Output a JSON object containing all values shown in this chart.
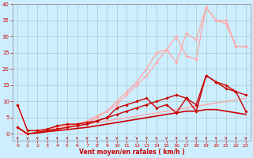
{
  "title": "",
  "xlabel": "Vent moyen/en rafales ( km/h )",
  "xlim": [
    -0.5,
    23.5
  ],
  "ylim": [
    -2,
    40
  ],
  "xticks": [
    0,
    1,
    2,
    3,
    4,
    5,
    6,
    7,
    8,
    9,
    10,
    11,
    12,
    13,
    14,
    15,
    16,
    17,
    18,
    19,
    20,
    21,
    22,
    23
  ],
  "yticks": [
    0,
    5,
    10,
    15,
    20,
    25,
    30,
    35,
    40
  ],
  "bg_color": "#cceeff",
  "grid_color": "#aacccc",
  "lines": [
    {
      "x": [
        0,
        1,
        2,
        3,
        4,
        5,
        6,
        7,
        8,
        9,
        10,
        11,
        12,
        13,
        14,
        15,
        16,
        17,
        18,
        19,
        20,
        21,
        22,
        23
      ],
      "y": [
        0,
        0,
        0.5,
        1,
        1.5,
        2,
        2.5,
        3,
        3.5,
        4,
        4.5,
        5,
        5.5,
        6,
        6.5,
        7,
        7.5,
        8,
        8.5,
        9,
        9.5,
        10,
        10.5,
        11
      ],
      "color": "#ffaaaa",
      "lw": 1.0,
      "marker": null,
      "zorder": 2
    },
    {
      "x": [
        0,
        1,
        2,
        3,
        4,
        5,
        6,
        7,
        8,
        9,
        10,
        11,
        12,
        13,
        14,
        15,
        16,
        17,
        18,
        19,
        20,
        21,
        22,
        23
      ],
      "y": [
        2,
        0,
        0.5,
        1,
        1.5,
        2,
        2.5,
        3.5,
        5,
        7,
        9,
        12,
        15,
        18,
        22,
        26,
        30,
        24,
        23,
        39,
        35,
        34,
        27,
        27
      ],
      "color": "#ffaaaa",
      "lw": 1.0,
      "marker": "D",
      "ms": 1.8,
      "zorder": 3
    },
    {
      "x": [
        0,
        1,
        2,
        3,
        4,
        5,
        6,
        7,
        8,
        9,
        10,
        11,
        12,
        13,
        14,
        15,
        16,
        17,
        18,
        19,
        20,
        21,
        22,
        23
      ],
      "y": [
        9,
        1,
        1,
        1.5,
        2,
        2.5,
        3,
        4,
        5.5,
        7,
        10,
        13,
        16,
        20,
        25,
        26,
        22,
        31,
        29,
        39,
        35,
        35,
        27,
        27
      ],
      "color": "#ffaaaa",
      "lw": 1.0,
      "marker": "D",
      "ms": 1.8,
      "zorder": 3
    },
    {
      "x": [
        0,
        1,
        2,
        3,
        4,
        5,
        6,
        7,
        8,
        9,
        10,
        11,
        12,
        13,
        14,
        15,
        16,
        17,
        18,
        19,
        20,
        21,
        22,
        23
      ],
      "y": [
        2,
        0,
        0.3,
        0.7,
        1,
        1.3,
        1.7,
        2,
        2.5,
        3,
        3.5,
        4,
        4.5,
        5,
        5.5,
        6,
        6.5,
        7,
        7,
        7.5,
        7.5,
        7,
        6.5,
        6
      ],
      "color": "#cc0000",
      "lw": 1.2,
      "marker": null,
      "zorder": 4
    },
    {
      "x": [
        0,
        1,
        2,
        3,
        4,
        5,
        6,
        7,
        8,
        9,
        10,
        11,
        12,
        13,
        14,
        15,
        16,
        17,
        18,
        19,
        20,
        21,
        22,
        23
      ],
      "y": [
        2,
        0,
        0.5,
        1,
        1.5,
        2,
        2.5,
        3,
        4,
        5,
        6,
        7,
        8,
        9,
        10,
        11,
        12,
        11,
        9,
        18,
        16,
        15,
        13,
        12
      ],
      "color": "#cc0000",
      "lw": 1.0,
      "marker": "D",
      "ms": 1.8,
      "zorder": 5
    },
    {
      "x": [
        0,
        1,
        2,
        3,
        4,
        5,
        6,
        7,
        8,
        9,
        10,
        11,
        12,
        13,
        14,
        15,
        16,
        17,
        18,
        19,
        20,
        21,
        22,
        23
      ],
      "y": [
        9,
        1,
        1,
        1.5,
        2.5,
        3,
        3,
        3.5,
        4,
        5,
        8,
        9,
        10,
        11,
        8,
        9,
        6.5,
        11,
        7,
        18,
        16,
        14,
        13,
        7
      ],
      "color": "#cc0000",
      "lw": 1.0,
      "marker": "D",
      "ms": 1.8,
      "zorder": 5
    }
  ]
}
